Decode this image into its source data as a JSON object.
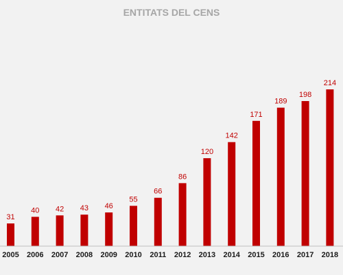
{
  "chart_data": {
    "type": "bar",
    "title": "ENTITATS DEL CENS",
    "xlabel": "",
    "ylabel": "",
    "categories": [
      "2005",
      "2006",
      "2007",
      "2008",
      "2009",
      "2010",
      "2011",
      "2012",
      "2013",
      "2014",
      "2015",
      "2016",
      "2017",
      "2018"
    ],
    "values": [
      31,
      40,
      42,
      43,
      46,
      55,
      66,
      86,
      120,
      142,
      171,
      189,
      198,
      214
    ],
    "data_labels": [
      "31",
      "40",
      "42",
      "43",
      "46",
      "55",
      "66",
      "86",
      "120",
      "142",
      "171",
      "189",
      "198",
      "214"
    ],
    "ylim": [
      0,
      214
    ],
    "grid": false,
    "legend": "none",
    "bar_color": "#c00000",
    "label_color": "#c00000",
    "title_color": "#a6a6a6",
    "background_color": "#f2f2f2"
  }
}
